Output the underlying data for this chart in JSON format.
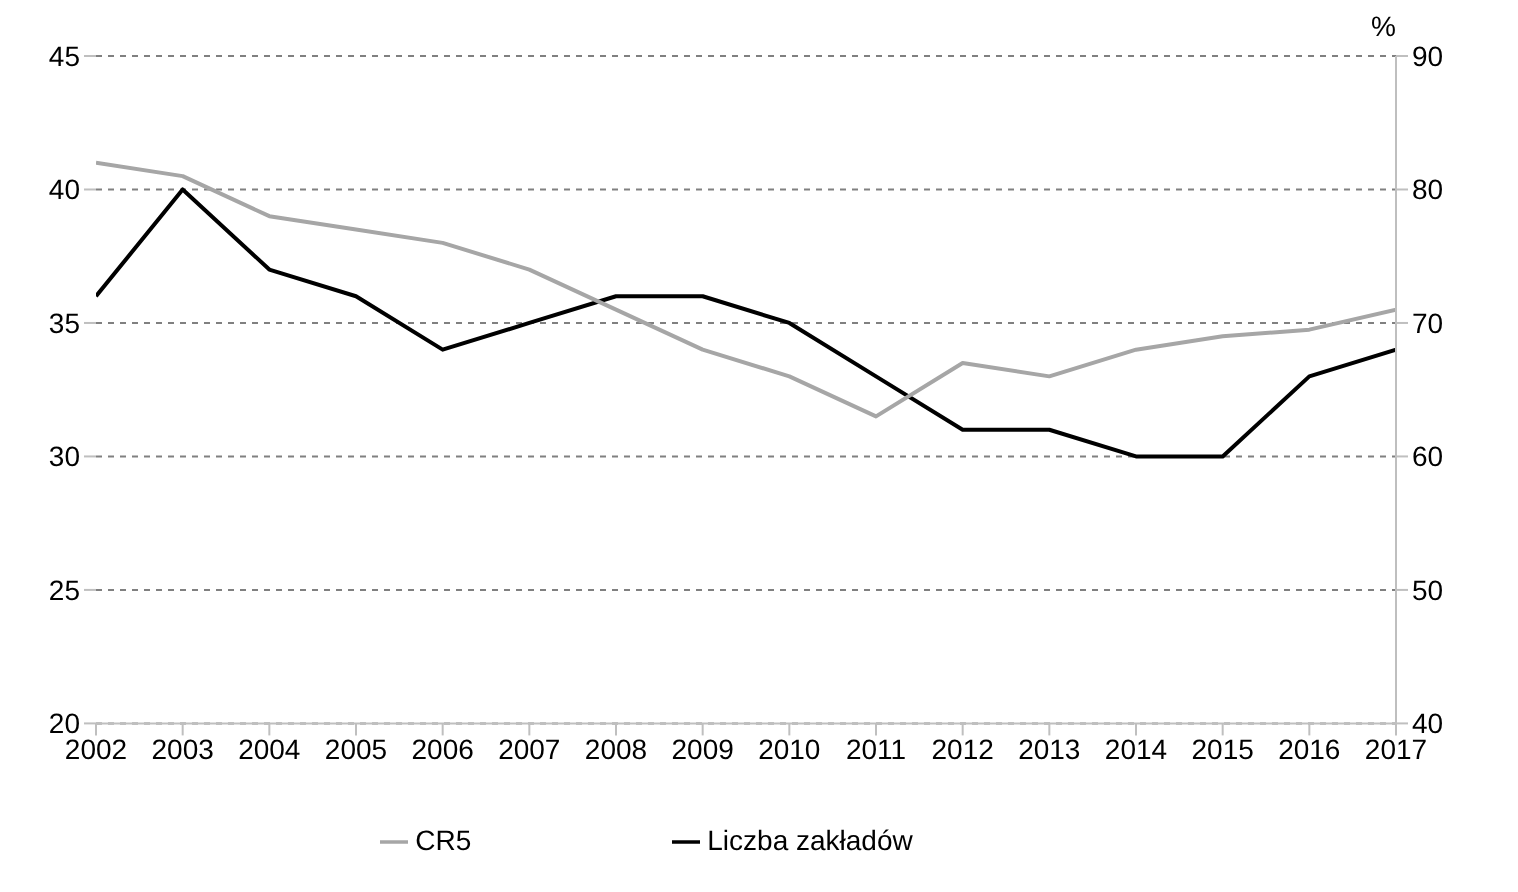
{
  "chart_data": {
    "type": "line",
    "y2label": "%",
    "x": [
      2002,
      2003,
      2004,
      2005,
      2006,
      2007,
      2008,
      2009,
      2010,
      2011,
      2012,
      2013,
      2014,
      2015,
      2016,
      2017
    ],
    "xlim": [
      2002,
      2017
    ],
    "xticks": [
      2002,
      2003,
      2004,
      2005,
      2006,
      2007,
      2008,
      2009,
      2010,
      2011,
      2012,
      2013,
      2014,
      2015,
      2016,
      2017
    ],
    "ylim": [
      20,
      45
    ],
    "yticks": [
      20,
      25,
      30,
      35,
      40,
      45
    ],
    "y2lim": [
      40,
      90
    ],
    "y2ticks": [
      40,
      50,
      60,
      70,
      80,
      90
    ],
    "grid": "y",
    "legend": "bottom",
    "marker": "none",
    "line_style": "solid",
    "series": [
      {
        "name": "Liczba zakładów",
        "color": "#000000",
        "values": [
          36,
          40,
          37,
          36,
          34,
          35,
          36,
          36,
          35,
          33,
          31,
          31,
          30,
          30,
          33,
          34
        ]
      },
      {
        "name": "CR5",
        "color": "#a6a6a6",
        "axis": "y2",
        "values": [
          82,
          81,
          78,
          77,
          76,
          74,
          71,
          68,
          66,
          63,
          67,
          66,
          68,
          69,
          69.5,
          71
        ]
      }
    ]
  }
}
